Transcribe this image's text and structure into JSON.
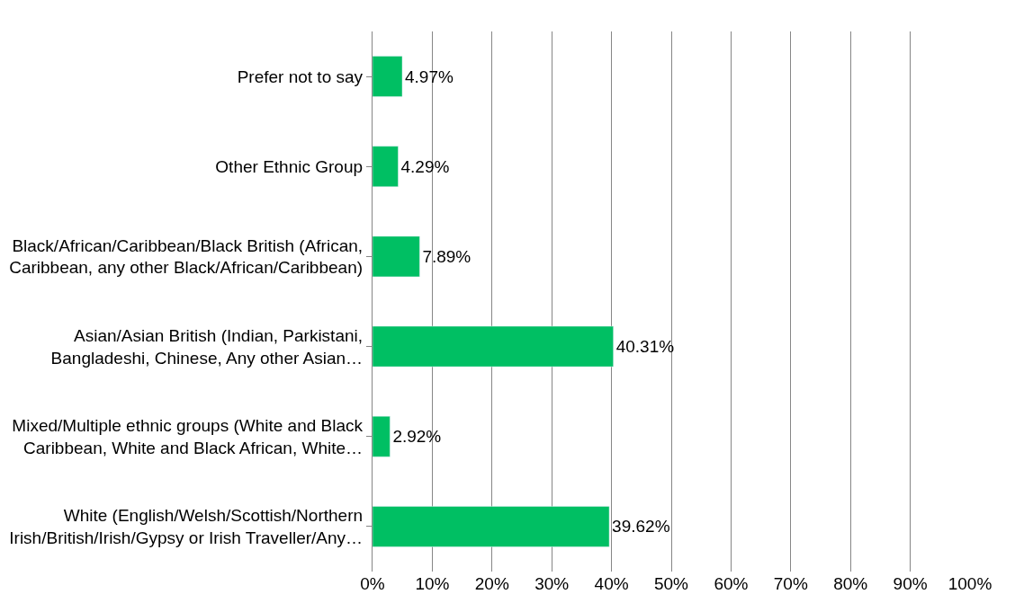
{
  "chart_data": {
    "type": "bar",
    "orientation": "horizontal",
    "categories": [
      "Prefer not to say",
      "Other Ethnic Group",
      "Black/African/Caribbean/Black British (African,\nCaribbean, any other Black/African/Caribbean)",
      "Asian/Asian British (Indian, Parkistani,\nBangladeshi, Chinese, Any other Asian…",
      "Mixed/Multiple ethnic groups (White and Black\nCaribbean, White and Black African, White…",
      "White (English/Welsh/Scottish/Northern\nIrish/British/Irish/Gypsy or Irish Traveller/Any…"
    ],
    "values": [
      4.97,
      4.29,
      7.89,
      40.31,
      2.92,
      39.62
    ],
    "value_labels": [
      "4.97%",
      "4.29%",
      "7.89%",
      "40.31%",
      "2.92%",
      "39.62%"
    ],
    "color": "#00bf63",
    "xlim": [
      0,
      100
    ],
    "xticks": [
      {
        "value": 0,
        "label": "0%"
      },
      {
        "value": 10,
        "label": "10%"
      },
      {
        "value": 20,
        "label": "20%"
      },
      {
        "value": 30,
        "label": "30%"
      },
      {
        "value": 40,
        "label": "40%"
      },
      {
        "value": 50,
        "label": "50%"
      },
      {
        "value": 60,
        "label": "60%"
      },
      {
        "value": 70,
        "label": "70%"
      },
      {
        "value": 80,
        "label": "80%"
      },
      {
        "value": 90,
        "label": "90%"
      },
      {
        "value": 100,
        "label": "100%"
      }
    ],
    "grid": "x"
  }
}
